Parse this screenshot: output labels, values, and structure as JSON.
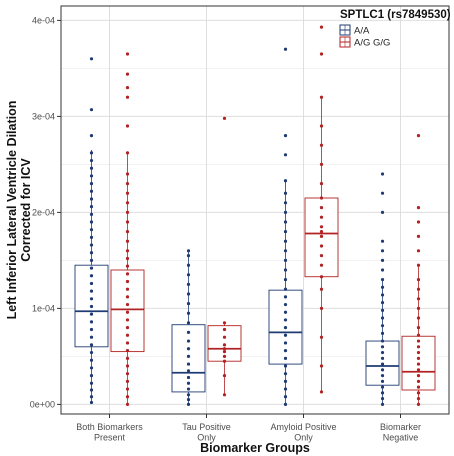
{
  "chart_data": {
    "type": "box",
    "title": "",
    "xlabel": "Biomarker Groups",
    "ylabel": "Left Inferior Lateral Ventricle Dilation Corrected for ICV",
    "ylim": [
      -1e-05,
      0.000415
    ],
    "yticks": [
      0,
      0.0001,
      0.0002,
      0.0003,
      0.0004
    ],
    "ytick_labels": [
      "0e+00",
      "1e-04",
      "2e-04",
      "3e-04",
      "4e-04"
    ],
    "grid": true,
    "legend": {
      "title": "SPTLC1 (rs7849530)",
      "position": "top-right",
      "entries": [
        "A/A",
        "A/G G/G"
      ]
    },
    "categories": [
      "Both Biomarkers\nPresent",
      "Tau Positive\nOnly",
      "Amyloid Positive\nOnly",
      "Biomarker\nNegative"
    ],
    "series": [
      {
        "name": "A/A",
        "color": "#1f3b73",
        "boxes": [
          {
            "q1": 6e-05,
            "median": 9.7e-05,
            "q3": 0.000145,
            "whisker_low": 2e-06,
            "whisker_high": 0.000265,
            "points": [
              2e-06,
              8e-06,
              1.5e-05,
              2.2e-05,
              3e-05,
              3.8e-05,
              4.6e-05,
              5.4e-05,
              6.2e-05,
              7e-05,
              7.8e-05,
              8.6e-05,
              9.4e-05,
              0.000102,
              0.00011,
              0.000118,
              0.000126,
              0.000134,
              0.000142,
              0.00015,
              0.000158,
              0.000166,
              0.000174,
              0.000182,
              0.00019,
              0.000198,
              0.000206,
              0.000214,
              0.000222,
              0.00023,
              0.000238,
              0.000246,
              0.000254,
              0.000262,
              0.00028,
              0.000307,
              0.00036
            ]
          },
          {
            "q1": 1.3e-05,
            "median": 3.3e-05,
            "q3": 8.3e-05,
            "whisker_low": 0.0,
            "whisker_high": 0.00016,
            "points": [
              0.0,
              5e-06,
              1e-05,
              1.6e-05,
              2.2e-05,
              2.8e-05,
              3.5e-05,
              4.2e-05,
              5e-05,
              5.8e-05,
              6.6e-05,
              7.5e-05,
              8.5e-05,
              9.5e-05,
              0.000105,
              0.000115,
              0.000125,
              0.000135,
              0.000145,
              0.000155,
              0.00016
            ]
          },
          {
            "q1": 4.2e-05,
            "median": 7.5e-05,
            "q3": 0.000119,
            "whisker_low": 0.0,
            "whisker_high": 0.000233,
            "points": [
              0.0,
              8e-06,
              1.6e-05,
              2.4e-05,
              3.2e-05,
              4e-05,
              4.8e-05,
              5.6e-05,
              6.4e-05,
              7.2e-05,
              8e-05,
              8.8e-05,
              9.6e-05,
              0.000104,
              0.000112,
              0.00012,
              0.00013,
              0.00014,
              0.00015,
              0.00016,
              0.00017,
              0.00018,
              0.00019,
              0.0002,
              0.00021,
              0.00022,
              0.000233,
              0.00026,
              0.00028,
              0.00037
            ]
          },
          {
            "q1": 2e-05,
            "median": 4e-05,
            "q3": 6.6e-05,
            "whisker_low": 0.0,
            "whisker_high": 0.00013,
            "points": [
              0.0,
              6e-06,
              1.2e-05,
              1.8e-05,
              2.4e-05,
              3e-05,
              3.6e-05,
              4.2e-05,
              4.8e-05,
              5.4e-05,
              6e-05,
              6.6e-05,
              7.4e-05,
              8.2e-05,
              9e-05,
              9.8e-05,
              0.000106,
              0.000114,
              0.000122,
              0.00013,
              0.00014,
              0.00015,
              0.00016,
              0.00017,
              0.0002,
              0.00022,
              0.00024
            ]
          }
        ]
      },
      {
        "name": "A/G G/G",
        "color": "#b22222",
        "boxes": [
          {
            "q1": 5.5e-05,
            "median": 9.9e-05,
            "q3": 0.00014,
            "whisker_low": 0.0,
            "whisker_high": 0.000262,
            "points": [
              0.0,
              8e-06,
              1.6e-05,
              2.4e-05,
              3.2e-05,
              4e-05,
              4.8e-05,
              5.6e-05,
              6.4e-05,
              7.2e-05,
              8e-05,
              8.8e-05,
              9.6e-05,
              0.000104,
              0.000112,
              0.00012,
              0.000128,
              0.000136,
              0.000144,
              0.000152,
              0.00016,
              0.00017,
              0.00018,
              0.00019,
              0.0002,
              0.00021,
              0.00022,
              0.00023,
              0.00024,
              0.000262,
              0.00029,
              0.00032,
              0.00033,
              0.000344,
              0.000365
            ]
          },
          {
            "q1": 4.5e-05,
            "median": 5.8e-05,
            "q3": 8.2e-05,
            "whisker_low": 1e-05,
            "whisker_high": 8.5e-05,
            "points": [
              1e-05,
              3e-05,
              4.5e-05,
              5e-05,
              5.5e-05,
              5.8e-05,
              6.2e-05,
              7e-05,
              7.8e-05,
              8.5e-05,
              0.000298
            ]
          },
          {
            "q1": 0.000133,
            "median": 0.000178,
            "q3": 0.000215,
            "whisker_low": 1.3e-05,
            "whisker_high": 0.00032,
            "points": [
              1.3e-05,
              4e-05,
              7e-05,
              0.0001,
              0.00012,
              0.000133,
              0.000145,
              0.000155,
              0.000165,
              0.000175,
              0.00018,
              0.000185,
              0.000195,
              0.000205,
              0.000215,
              0.00023,
              0.00025,
              0.00027,
              0.00029,
              0.00032,
              0.000365,
              0.000393
            ]
          },
          {
            "q1": 1.5e-05,
            "median": 3.4e-05,
            "q3": 7.1e-05,
            "whisker_low": 0.0,
            "whisker_high": 0.000145,
            "points": [
              0.0,
              6e-06,
              1.2e-05,
              1.8e-05,
              2.4e-05,
              3e-05,
              3.6e-05,
              4.2e-05,
              4.8e-05,
              5.4e-05,
              6e-05,
              6.6e-05,
              7.2e-05,
              8e-05,
              9e-05,
              0.0001,
              0.00011,
              0.00012,
              0.00013,
              0.000145,
              0.00016,
              0.000175,
              0.00019,
              0.000205,
              0.00028
            ]
          }
        ]
      }
    ]
  }
}
